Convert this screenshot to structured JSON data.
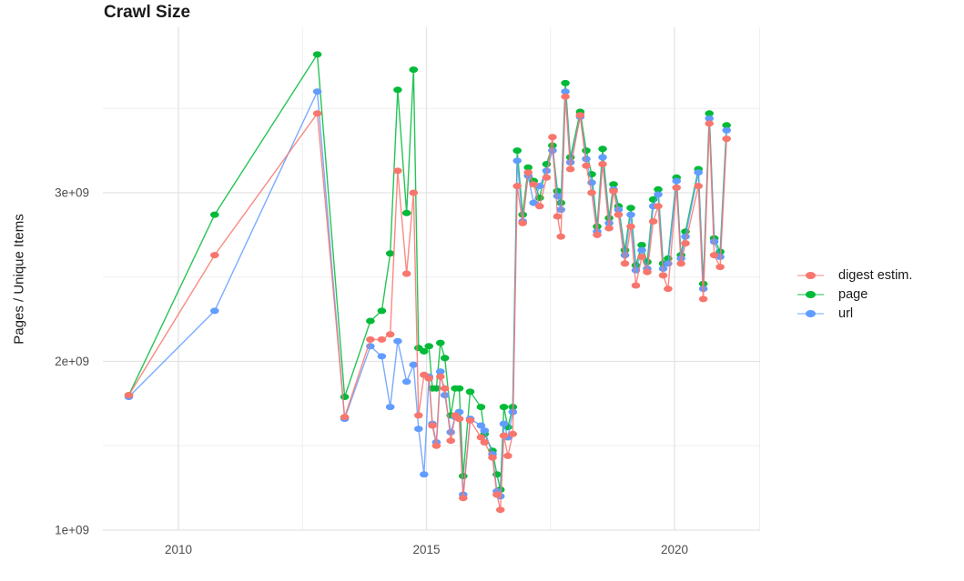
{
  "title": "Crawl Size",
  "y_axis": {
    "label": "Pages / Unique Items",
    "ticks": [
      {
        "label": "1e+09",
        "value": 1
      },
      {
        "label": "2e+09",
        "value": 2
      },
      {
        "label": "3e+09",
        "value": 3
      }
    ],
    "minor_values": [
      1.5,
      2.5,
      3.5
    ]
  },
  "x_axis": {
    "ticks": [
      {
        "label": "2010",
        "year": 2010
      },
      {
        "label": "2015",
        "year": 2015
      },
      {
        "label": "2020",
        "year": 2020
      }
    ],
    "minor_years": [
      2012.5,
      2017.5
    ]
  },
  "legend": {
    "items": [
      {
        "label": "digest estim.",
        "color": "#F8766D"
      },
      {
        "label": "page",
        "color": "#00BA38"
      },
      {
        "label": "url",
        "color": "#619CFF"
      }
    ]
  },
  "chart_data": {
    "type": "line",
    "title": "Crawl Size",
    "xlabel": "",
    "ylabel": "Pages / Unique Items",
    "y_unit": "count x 1e9",
    "x_unit": "crawl date (decimal year)",
    "xlim": [
      2008.5,
      2021.7
    ],
    "ylim": [
      1.0,
      4.0
    ],
    "grid": true,
    "legend_position": "right",
    "x": [
      2009.0,
      2010.73,
      2012.8,
      2013.35,
      2013.87,
      2014.1,
      2014.27,
      2014.42,
      2014.6,
      2014.74,
      2014.84,
      2014.95,
      2015.05,
      2015.12,
      2015.2,
      2015.28,
      2015.37,
      2015.49,
      2015.58,
      2015.66,
      2015.74,
      2015.88,
      2016.1,
      2016.17,
      2016.33,
      2016.42,
      2016.49,
      2016.56,
      2016.64,
      2016.74,
      2016.83,
      2016.94,
      2017.05,
      2017.16,
      2017.28,
      2017.42,
      2017.54,
      2017.64,
      2017.71,
      2017.8,
      2017.9,
      2018.1,
      2018.22,
      2018.33,
      2018.44,
      2018.55,
      2018.68,
      2018.77,
      2018.87,
      2019.0,
      2019.12,
      2019.22,
      2019.34,
      2019.45,
      2019.57,
      2019.67,
      2019.77,
      2019.87,
      2020.04,
      2020.13,
      2020.22,
      2020.48,
      2020.58,
      2020.7,
      2020.8,
      2020.92,
      2021.05
    ],
    "series": [
      {
        "name": "digest estim.",
        "color": "#F8766D",
        "values": [
          1.8,
          2.63,
          3.47,
          1.67,
          2.13,
          2.13,
          2.16,
          3.13,
          2.52,
          3.0,
          1.68,
          1.92,
          1.9,
          1.62,
          1.5,
          1.91,
          1.84,
          1.53,
          1.68,
          1.66,
          1.19,
          1.65,
          1.55,
          1.52,
          1.43,
          1.21,
          1.12,
          1.56,
          1.44,
          1.57,
          3.04,
          2.82,
          3.12,
          3.05,
          2.92,
          3.09,
          3.33,
          2.86,
          2.74,
          3.57,
          3.14,
          3.46,
          3.16,
          3.0,
          2.75,
          3.17,
          2.79,
          3.01,
          2.87,
          2.58,
          2.8,
          2.45,
          2.62,
          2.53,
          2.83,
          2.92,
          2.51,
          2.43,
          3.03,
          2.58,
          2.7,
          3.04,
          2.37,
          3.41,
          2.63,
          2.56,
          3.32
        ]
      },
      {
        "name": "page",
        "color": "#00BA38",
        "values": [
          1.8,
          2.87,
          3.82,
          1.79,
          2.24,
          2.3,
          2.64,
          3.61,
          2.88,
          3.73,
          2.08,
          2.06,
          2.09,
          1.84,
          1.84,
          2.11,
          2.02,
          1.68,
          1.84,
          1.84,
          1.32,
          1.82,
          1.73,
          1.57,
          1.47,
          1.33,
          1.24,
          1.73,
          1.61,
          1.73,
          3.25,
          2.87,
          3.15,
          3.07,
          2.97,
          3.17,
          3.28,
          3.01,
          2.94,
          3.65,
          3.21,
          3.48,
          3.25,
          3.11,
          2.8,
          3.26,
          2.85,
          3.05,
          2.92,
          2.66,
          2.91,
          2.57,
          2.69,
          2.59,
          2.96,
          3.02,
          2.58,
          2.61,
          3.09,
          2.63,
          2.77,
          3.14,
          2.46,
          3.47,
          2.73,
          2.65,
          3.4
        ]
      },
      {
        "name": "url",
        "color": "#619CFF",
        "values": [
          1.79,
          2.3,
          3.6,
          1.66,
          2.09,
          2.03,
          1.73,
          2.12,
          1.88,
          1.98,
          1.6,
          1.33,
          1.91,
          1.63,
          1.52,
          1.94,
          1.8,
          1.58,
          1.67,
          1.7,
          1.21,
          1.66,
          1.62,
          1.59,
          1.45,
          1.23,
          1.2,
          1.63,
          1.55,
          1.7,
          3.19,
          2.83,
          3.1,
          2.94,
          3.04,
          3.13,
          3.25,
          2.98,
          2.9,
          3.6,
          3.18,
          3.45,
          3.2,
          3.06,
          2.77,
          3.21,
          2.82,
          3.02,
          2.9,
          2.63,
          2.87,
          2.54,
          2.66,
          2.55,
          2.92,
          2.99,
          2.55,
          2.58,
          3.07,
          2.61,
          2.74,
          3.12,
          2.43,
          3.44,
          2.71,
          2.62,
          3.37
        ]
      }
    ]
  },
  "style": {
    "grid_major_color": "#e3e3e3",
    "grid_minor_color": "#efefef",
    "tick_label_color": "#4d4d4d",
    "text_color": "#1a1a1a",
    "background": "#ffffff"
  }
}
